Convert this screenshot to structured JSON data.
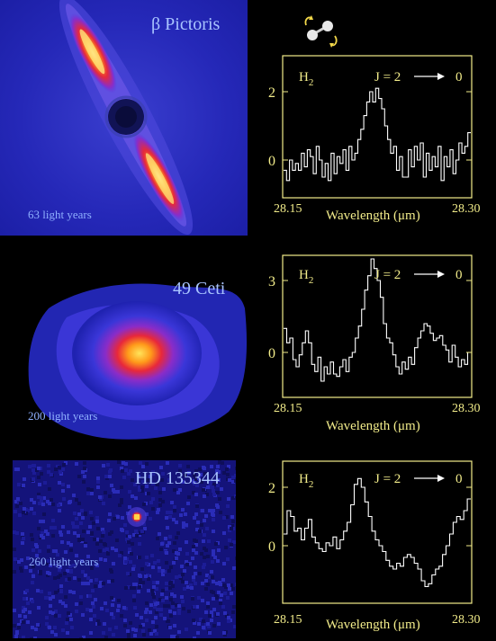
{
  "panels": [
    {
      "star": "β  Pictoris",
      "distance": "63 light years",
      "spectrum": {
        "species": "H",
        "species_sub": "2",
        "transition": "J = 2",
        "transition_to": "0",
        "xlabel": "Wavelength (μm)",
        "x_ticks": [
          "28.15",
          "28.30"
        ],
        "y_ticks": [
          "2",
          "0"
        ]
      }
    },
    {
      "star": "49 Ceti",
      "distance": "200 light years",
      "spectrum": {
        "species": "H",
        "species_sub": "2",
        "transition": "J = 2",
        "transition_to": "0",
        "xlabel": "Wavelength (μm)",
        "x_ticks": [
          "28.15",
          "28.30"
        ],
        "y_ticks": [
          "3",
          "0"
        ]
      }
    },
    {
      "star": "HD 135344",
      "distance": "260 light years",
      "spectrum": {
        "species": "H",
        "species_sub": "2",
        "transition": "J = 2",
        "transition_to": "0",
        "xlabel": "Wavelength (μm)",
        "x_ticks": [
          "28.15",
          "28.30"
        ],
        "y_ticks": [
          "2",
          "0"
        ]
      }
    }
  ],
  "colors": {
    "axis": "#f2ec8a",
    "trace": "#ffffff",
    "label_blue": "#a9c4ff"
  },
  "spectra_values": [
    [
      -0.3,
      -0.6,
      0.0,
      -0.3,
      -0.1,
      -0.3,
      0.2,
      -0.2,
      0.3,
      0.1,
      -0.4,
      0.4,
      0.0,
      -0.5,
      -0.1,
      -0.6,
      0.2,
      -0.4,
      0.1,
      -0.1,
      0.3,
      -0.3,
      0.4,
      0.0,
      0.2,
      0.6,
      0.9,
      1.3,
      1.7,
      2.0,
      1.7,
      2.1,
      1.8,
      1.5,
      1.0,
      0.6,
      0.2,
      0.4,
      -0.3,
      0.1,
      -0.5,
      -0.5,
      0.3,
      -0.2,
      0.4,
      0.0,
      0.5,
      -0.5,
      0.2,
      -0.3,
      0.1,
      -0.2,
      0.4,
      -0.6,
      0.1,
      -0.2,
      0.3,
      -0.4,
      0.0,
      0.5,
      0.2,
      0.4,
      0.8
    ],
    [
      1.0,
      0.4,
      0.6,
      -0.3,
      -0.6,
      -0.1,
      0.4,
      0.9,
      0.4,
      -0.5,
      -0.8,
      -0.2,
      -1.2,
      -0.6,
      -0.9,
      -0.4,
      -0.9,
      -1.0,
      -0.6,
      -0.3,
      -0.8,
      -0.2,
      0.0,
      0.6,
      1.1,
      1.8,
      2.6,
      3.2,
      3.9,
      3.5,
      3.0,
      2.3,
      1.2,
      0.6,
      0.4,
      -0.1,
      -0.6,
      -0.9,
      -0.4,
      -0.7,
      -0.2,
      -0.5,
      0.2,
      0.6,
      0.9,
      1.2,
      1.1,
      0.8,
      0.5,
      0.6,
      0.7,
      0.3,
      0.1,
      -0.4,
      0.3,
      -0.2,
      -0.6,
      -0.3,
      -0.5,
      0.0
    ],
    [
      0.4,
      1.2,
      1.0,
      0.5,
      0.6,
      0.2,
      0.6,
      0.9,
      0.3,
      0.1,
      -0.1,
      -0.2,
      0.1,
      0.0,
      0.3,
      -0.1,
      0.2,
      0.5,
      0.8,
      1.4,
      2.1,
      2.3,
      2.0,
      1.5,
      1.0,
      0.5,
      0.2,
      0.0,
      -0.2,
      -0.5,
      -0.7,
      -0.8,
      -0.6,
      -0.7,
      -0.4,
      -0.3,
      -0.4,
      -0.6,
      -0.8,
      -1.2,
      -1.4,
      -1.3,
      -1.0,
      -0.8,
      -0.7,
      -0.3,
      0.0,
      0.4,
      0.8,
      1.0,
      0.9,
      1.2,
      1.6
    ]
  ]
}
